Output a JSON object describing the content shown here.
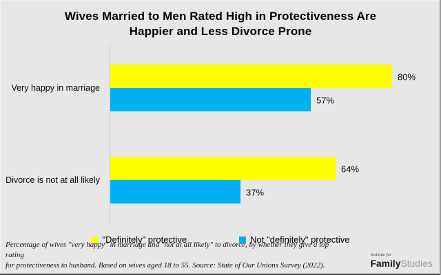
{
  "title": {
    "line1": "Wives Married to Men Rated High in Protectiveness Are",
    "line2": "Happier and Less Divorce Prone"
  },
  "chart_data": {
    "type": "bar",
    "orientation": "horizontal",
    "title": "Wives Married to Men Rated High in Protectiveness Are Happier and Less Divorce Prone",
    "categories": [
      "Very happy in marriage",
      "Divorce is not at all likely"
    ],
    "series": [
      {
        "name": "\"Definitely\" protective",
        "color": "#FFFF00",
        "values": [
          80,
          64
        ]
      },
      {
        "name": "Not \"definitely\" protective",
        "color": "#00B0F0",
        "values": [
          57,
          37
        ]
      }
    ],
    "data_labels": [
      [
        "80%",
        "64%"
      ],
      [
        "57%",
        "37%"
      ]
    ],
    "value_suffix": "%",
    "xlim": [
      0,
      90
    ],
    "grid": false,
    "legend_position": "bottom"
  },
  "footer": {
    "note_line1": "Percentage of wives \"very happy\" in marriage and \"not at all likely\" to divorce, by whether they give a top rating",
    "note_line2": "for protectiveness to husband. Based on wives aged 18 to 55. Source: State of Our Unions Survey (2022).",
    "logo": {
      "prefix": "Institute for",
      "bold": "Family",
      "light": "Studies"
    }
  },
  "colors": {
    "background": "#E7E7E7",
    "axis": "#C7C7C7",
    "text": "#000000",
    "yellow": "#FFFF00",
    "blue": "#00B0F0",
    "logo_light": "#9B9B9B"
  }
}
